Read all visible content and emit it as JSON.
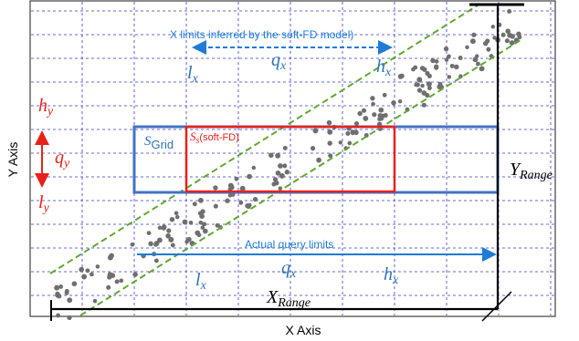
{
  "axes": {
    "x_title": "X Axis",
    "y_title": "Y Axis",
    "x_range": {
      "base": "X",
      "sub": "Range"
    },
    "y_range": {
      "base": "Y",
      "sub": "Range"
    }
  },
  "inferred_limits": {
    "caption": "X limits inferred by the soft-FD model)",
    "lx": {
      "base": "l",
      "sub": "x"
    },
    "qx": {
      "base": "q",
      "sub": "x"
    },
    "hx": {
      "base": "h",
      "sub": "x"
    }
  },
  "actual_limits": {
    "caption": "Actual query limits",
    "lx": {
      "base": "l",
      "sub": "x"
    },
    "qx": {
      "base": "q",
      "sub": "x"
    },
    "hx": {
      "base": "h",
      "sub": "x"
    }
  },
  "y_limits": {
    "hy": {
      "base": "h",
      "sub": "y"
    },
    "qy": {
      "base": "q",
      "sub": "y"
    },
    "ly": {
      "base": "l",
      "sub": "y"
    }
  },
  "grid_region": {
    "base": "S",
    "sub": "Grid"
  },
  "softfd_region": {
    "base": "S",
    "sub": "s",
    "suffix": "(soft-FD)"
  },
  "colors": {
    "blue": "#4472c4",
    "red": "#e8211b",
    "label_blue": "#2e75b6",
    "arrow_blue": "#1f7bd6",
    "green": "#5fa832",
    "grid": "#3a3ac8",
    "dots": "#6f6f6f"
  }
}
